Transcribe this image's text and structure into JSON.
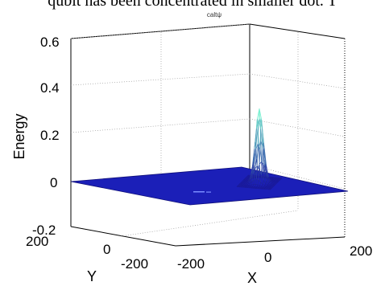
{
  "caption": "qubit has been concentrated in smaller dot. T",
  "chart_data": {
    "type": "surface",
    "title": "caltψ",
    "xlabel": "X",
    "ylabel": "Y",
    "zlabel": "Energy",
    "x_ticks": [
      "-200",
      "0",
      "200"
    ],
    "y_ticks": [
      "-200",
      "0",
      "200"
    ],
    "z_ticks": [
      "-0.2",
      "0",
      "0.2",
      "0.4",
      "0.6"
    ],
    "xlim": [
      -200,
      200
    ],
    "ylim": [
      -200,
      200
    ],
    "zlim": [
      -0.2,
      0.6
    ],
    "grid": true,
    "peak": {
      "x": 110,
      "y": 0,
      "z": 0.27
    },
    "colors": {
      "plane": "#1b1fb8",
      "mesh_low": "#1a1a9a",
      "mesh_high": "#7fffd4",
      "grid": "#aaaaaa"
    }
  }
}
